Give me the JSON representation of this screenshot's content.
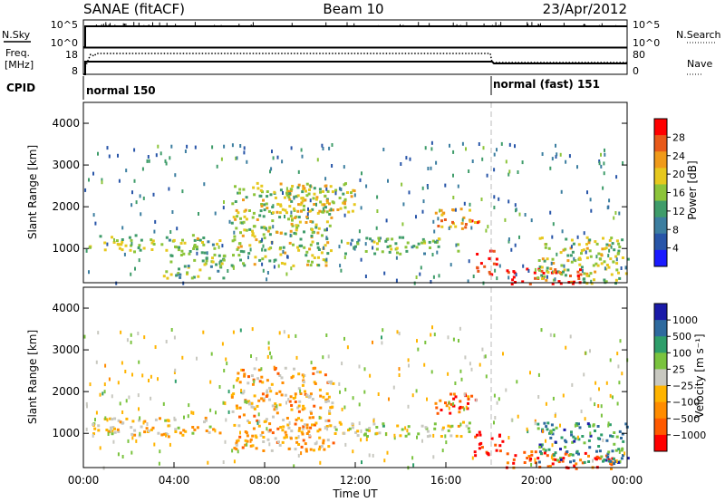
{
  "header": {
    "radar": "SANAE (fitACF)",
    "beam": "Beam 10",
    "date": "23/Apr/2012"
  },
  "top_panels": {
    "noise_label_left": "N.Sky",
    "noise_label_right": "N.Search",
    "noise_ticks_left": [
      "10^5",
      "10^0"
    ],
    "noise_ticks_right": [
      "10^5",
      "10^0"
    ],
    "freq_label": "Freq.",
    "freq_unit": "[MHz]",
    "freq_ticks": [
      "18",
      "8"
    ],
    "nave_label": "Nave",
    "nave_ticks": [
      "80",
      "0"
    ],
    "cpid_label": "CPID",
    "modes": [
      {
        "name": "normal 150",
        "start": "00:00",
        "end": "18:00"
      },
      {
        "name": "normal (fast) 151",
        "start": "18:00",
        "end": "24:00"
      }
    ]
  },
  "chart_data": [
    {
      "type": "heatmap",
      "name": "power",
      "ylabel": "Slant Range [km]",
      "yticks": [
        "1000",
        "2000",
        "3000",
        "4000"
      ],
      "ylim": [
        180,
        4500
      ],
      "xlim": [
        "00:00",
        "24:00"
      ],
      "colorbar_label": "Power [dB]",
      "colorbar_ticks": [
        "28",
        "24",
        "20",
        "16",
        "12",
        "8",
        "4"
      ],
      "colorscale": [
        "#1a1aff",
        "#2855a8",
        "#3c7ea0",
        "#3f9c6a",
        "#8cc43a",
        "#e6c81e",
        "#ef9a1a",
        "#e85a1a",
        "#ff0000"
      ],
      "scatter_bands": [
        {
          "t0": 0.2,
          "t1": 6.0,
          "r0": 950,
          "r1": 1350,
          "level": 0.5
        },
        {
          "t0": 3.5,
          "t1": 6.2,
          "r0": 300,
          "r1": 1000,
          "level": 0.45
        },
        {
          "t0": 6.5,
          "t1": 11.0,
          "r0": 600,
          "r1": 2600,
          "level": 0.55
        },
        {
          "t0": 9.0,
          "t1": 12.0,
          "r0": 1900,
          "r1": 2600,
          "level": 0.6
        },
        {
          "t0": 11.5,
          "t1": 16.5,
          "r0": 900,
          "r1": 1300,
          "level": 0.45
        },
        {
          "t0": 15.5,
          "t1": 17.5,
          "r0": 1500,
          "r1": 2000,
          "level": 0.75
        },
        {
          "t0": 17.2,
          "t1": 18.2,
          "r0": 400,
          "r1": 1000,
          "level": 0.95
        },
        {
          "t0": 18.5,
          "t1": 22.0,
          "r0": 180,
          "r1": 550,
          "level": 0.98
        },
        {
          "t0": 20.0,
          "t1": 24.0,
          "r0": 180,
          "r1": 1300,
          "level": 0.55
        },
        {
          "t0": 0.0,
          "t1": 24.0,
          "r0": 200,
          "r1": 3600,
          "level": 0.3
        }
      ]
    },
    {
      "type": "heatmap",
      "name": "velocity",
      "ylabel": "Slant Range [km]",
      "yticks": [
        "1000",
        "2000",
        "3000",
        "4000"
      ],
      "ylim": [
        180,
        4500
      ],
      "xlim": [
        "00:00",
        "24:00"
      ],
      "xlabel": "Time UT",
      "xticks": [
        "00:00",
        "04:00",
        "08:00",
        "12:00",
        "16:00",
        "20:00",
        "00:00"
      ],
      "colorbar_label": "Velocity [m s⁻¹]",
      "colorbar_ticks": [
        "1000",
        "500",
        "100",
        "25",
        "−25",
        "−100",
        "−500",
        "−1000"
      ],
      "colorscale": [
        "#ff0000",
        "#ff5a00",
        "#ff8c00",
        "#ffb400",
        "#c8c8c0",
        "#7ac33e",
        "#2e9e6a",
        "#2e6a9e",
        "#1a1aa8"
      ],
      "scatter_bands": [
        {
          "t0": 0.2,
          "t1": 6.0,
          "r0": 950,
          "r1": 1400,
          "level": 0.4
        },
        {
          "t0": 6.5,
          "t1": 11.0,
          "r0": 600,
          "r1": 2600,
          "level": 0.35
        },
        {
          "t0": 11.0,
          "t1": 17.0,
          "r0": 950,
          "r1": 1300,
          "level": 0.5
        },
        {
          "t0": 15.5,
          "t1": 17.5,
          "r0": 1500,
          "r1": 2000,
          "level": 0.2
        },
        {
          "t0": 17.2,
          "t1": 18.5,
          "r0": 500,
          "r1": 1100,
          "level": 0.05
        },
        {
          "t0": 18.5,
          "t1": 23.5,
          "r0": 180,
          "r1": 600,
          "level": 0.15
        },
        {
          "t0": 20.0,
          "t1": 24.0,
          "r0": 300,
          "r1": 1300,
          "level": 0.75
        },
        {
          "t0": 0.0,
          "t1": 24.0,
          "r0": 200,
          "r1": 3600,
          "level": 0.5
        }
      ]
    }
  ]
}
